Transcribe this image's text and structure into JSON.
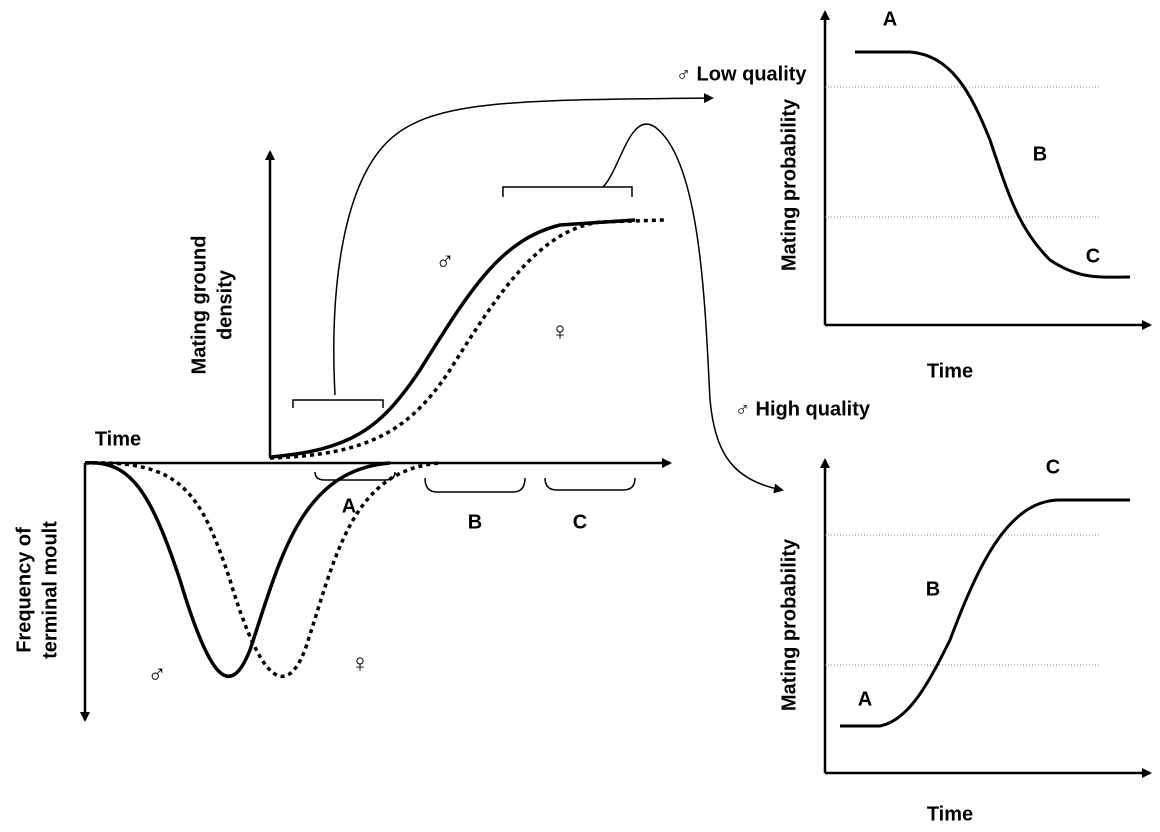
{
  "main": {
    "y_label_top": [
      "Mating ground",
      "density"
    ],
    "x_label": "Time",
    "y_label_bottom": [
      "Frequency of",
      "terminal moult"
    ],
    "density_male": "♂",
    "density_female": "♀",
    "moult_male": "♂",
    "moult_female": "♀",
    "periods": [
      "A",
      "B",
      "C"
    ]
  },
  "low_quality": {
    "label": "♂ Low quality",
    "y_label": "Mating probability",
    "x_label": "Time",
    "points": [
      "A",
      "B",
      "C"
    ]
  },
  "high_quality": {
    "label": "♂ High quality",
    "y_label": "Mating probability",
    "x_label": "Time",
    "points": [
      "A",
      "B",
      "C"
    ]
  }
}
